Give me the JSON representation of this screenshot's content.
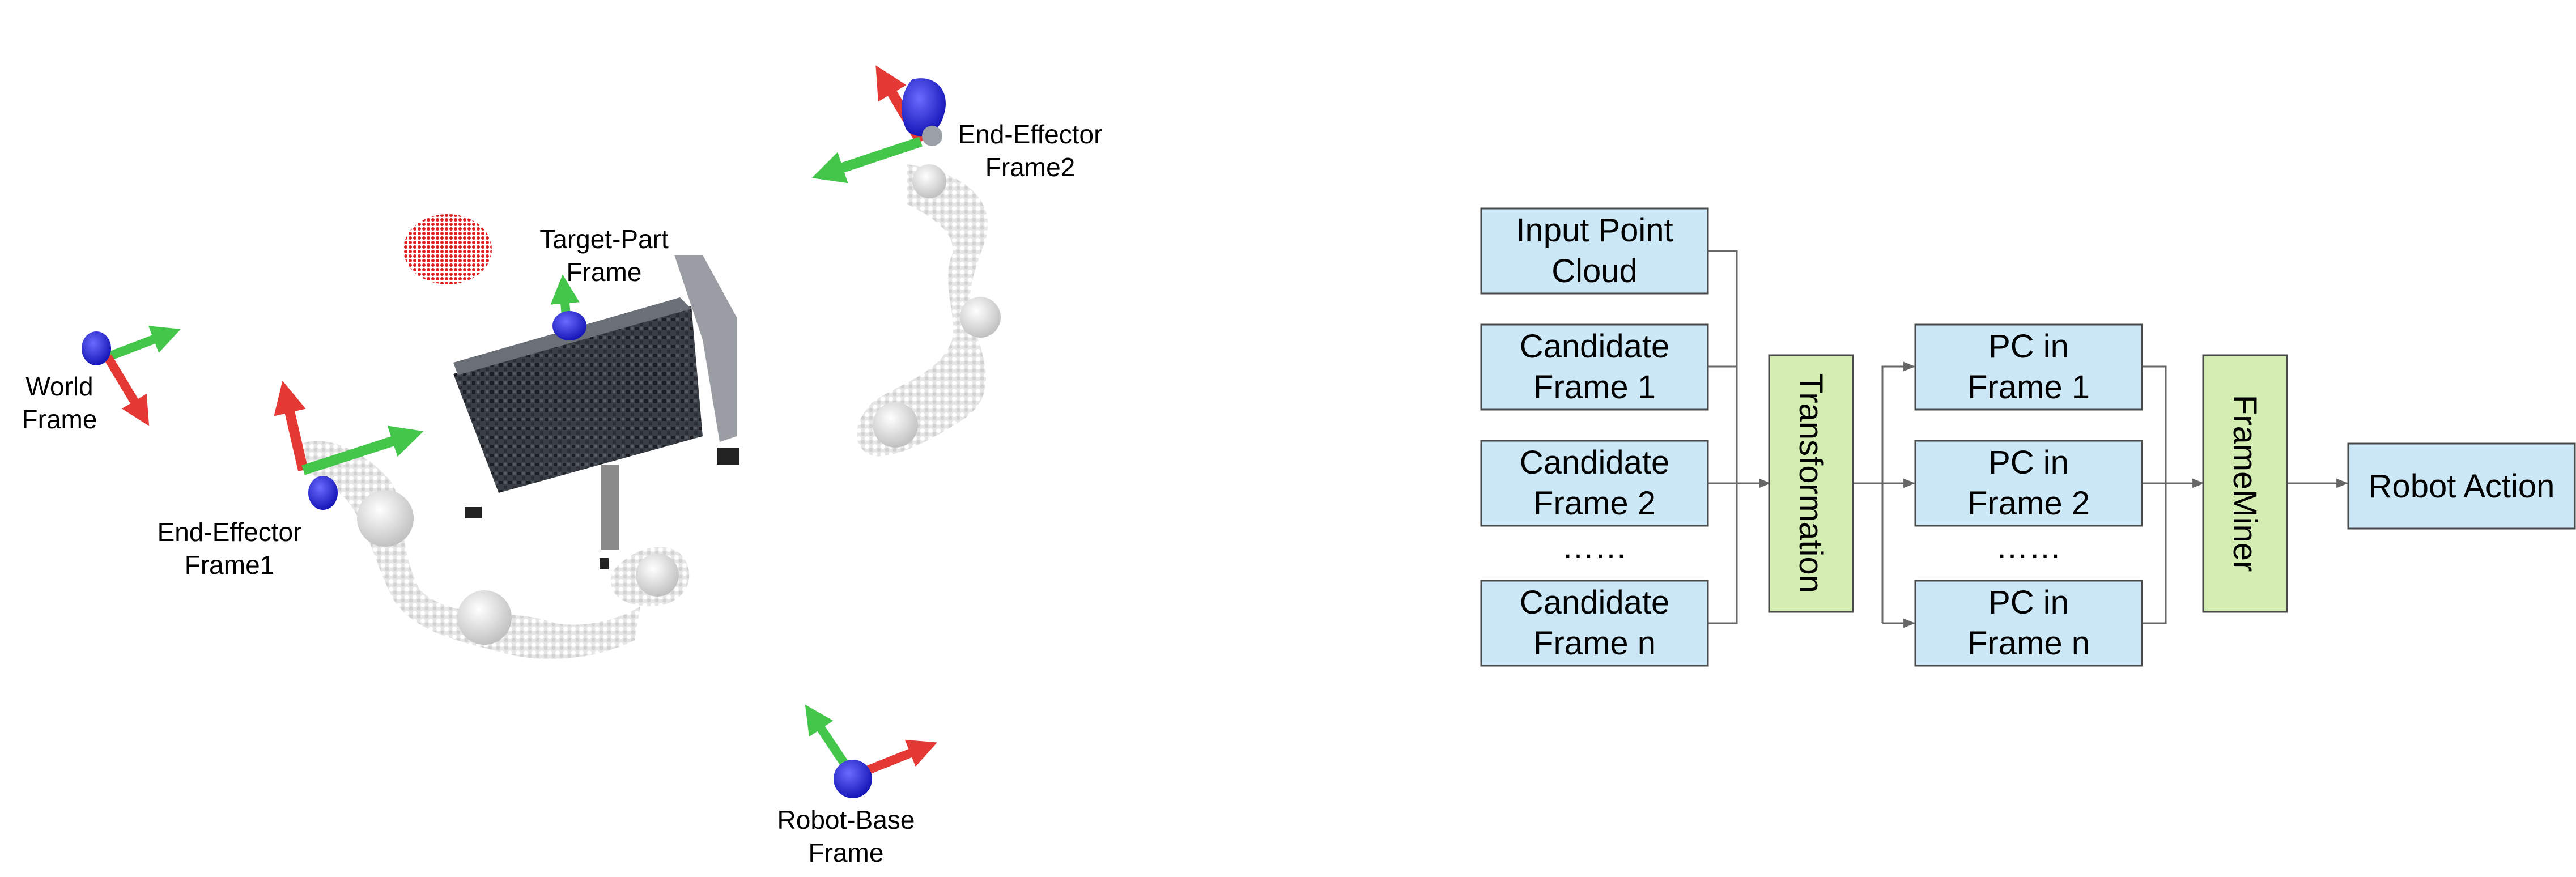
{
  "scene": {
    "frame_labels": {
      "end_effector_2": [
        "End-Effector",
        "Frame2"
      ],
      "target_part": [
        "Target-Part",
        "Frame"
      ],
      "world": [
        "World",
        "Frame"
      ],
      "end_effector_1": [
        "End-Effector",
        "Frame1"
      ],
      "robot_base": [
        "Robot-Base",
        "Frame"
      ]
    }
  },
  "flow": {
    "inputs": [
      [
        "Input Point",
        "Cloud"
      ],
      [
        "Candidate",
        "Frame 1"
      ],
      [
        "Candidate",
        "Frame 2"
      ],
      [
        "Candidate",
        "Frame n"
      ]
    ],
    "input_ellipsis": "……",
    "transformation": "Transformation",
    "outputs": [
      [
        "PC in",
        "Frame 1"
      ],
      [
        "PC in",
        "Frame 2"
      ],
      [
        "PC in",
        "Frame n"
      ]
    ],
    "output_ellipsis": "……",
    "frameminer": "FrameMiner",
    "action": "Robot Action"
  },
  "colors": {
    "box_fill": "#cce7f5",
    "green_fill": "#d3edb3",
    "axis_red": "#e53935",
    "axis_green": "#43c64a",
    "axis_blue": "#2a2adf"
  }
}
